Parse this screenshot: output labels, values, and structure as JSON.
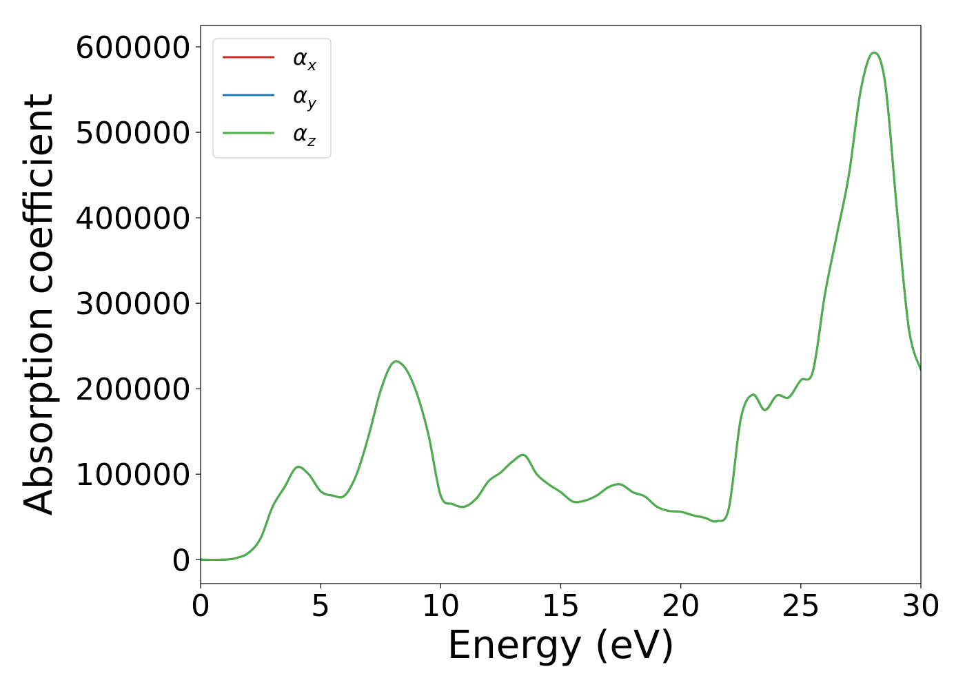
{
  "chart_data": {
    "type": "line",
    "title": "",
    "xlabel": "Energy (eV)",
    "ylabel": "Absorption coefficient",
    "xlim": [
      0,
      30
    ],
    "ylim": [
      -28000,
      625000
    ],
    "xticks": [
      0,
      5,
      10,
      15,
      20,
      25,
      30
    ],
    "xtick_labels": [
      "0",
      "5",
      "10",
      "15",
      "20",
      "25",
      "30"
    ],
    "yticks": [
      0,
      100000,
      200000,
      300000,
      400000,
      500000,
      600000
    ],
    "ytick_labels": [
      "0",
      "100000",
      "200000",
      "300000",
      "400000",
      "500000",
      "600000"
    ],
    "grid": false,
    "legend_position": "top-left",
    "series": [
      {
        "name": "α",
        "subscript": "x",
        "color": "#d62728",
        "x": [
          0,
          1,
          1.5,
          2,
          2.5,
          3,
          3.5,
          4,
          4.5,
          5,
          5.5,
          6,
          6.5,
          7,
          7.5,
          8,
          8.5,
          9,
          9.5,
          10,
          10.5,
          11,
          11.5,
          12,
          12.5,
          13,
          13.5,
          14,
          14.5,
          15,
          15.5,
          16,
          16.5,
          17,
          17.5,
          18,
          18.5,
          19,
          19.5,
          20,
          20.5,
          21,
          21.5,
          22,
          22.5,
          23,
          23.5,
          24,
          24.5,
          25,
          25.5,
          26,
          26.5,
          27,
          27.5,
          28,
          28.5,
          29,
          29.5,
          30
        ],
        "y": [
          0,
          0,
          2000,
          8000,
          25000,
          62000,
          85000,
          108000,
          100000,
          80000,
          75000,
          75000,
          100000,
          145000,
          198000,
          230000,
          225000,
          195000,
          145000,
          75000,
          65000,
          62000,
          72000,
          92000,
          102000,
          115000,
          122000,
          100000,
          88000,
          79000,
          68000,
          69000,
          75000,
          85000,
          88000,
          79000,
          74000,
          62000,
          57000,
          56000,
          52000,
          49000,
          45000,
          60000,
          165000,
          193000,
          175000,
          192000,
          190000,
          210000,
          220000,
          310000,
          380000,
          450000,
          550000,
          593000,
          560000,
          410000,
          270000,
          222000
        ]
      },
      {
        "name": "α",
        "subscript": "y",
        "color": "#1f77b4",
        "x": [
          0,
          1,
          1.5,
          2,
          2.5,
          3,
          3.5,
          4,
          4.5,
          5,
          5.5,
          6,
          6.5,
          7,
          7.5,
          8,
          8.5,
          9,
          9.5,
          10,
          10.5,
          11,
          11.5,
          12,
          12.5,
          13,
          13.5,
          14,
          14.5,
          15,
          15.5,
          16,
          16.5,
          17,
          17.5,
          18,
          18.5,
          19,
          19.5,
          20,
          20.5,
          21,
          21.5,
          22,
          22.5,
          23,
          23.5,
          24,
          24.5,
          25,
          25.5,
          26,
          26.5,
          27,
          27.5,
          28,
          28.5,
          29,
          29.5,
          30
        ],
        "y": [
          0,
          0,
          2000,
          8000,
          25000,
          62000,
          85000,
          108000,
          100000,
          80000,
          75000,
          75000,
          100000,
          145000,
          198000,
          230000,
          225000,
          195000,
          145000,
          75000,
          65000,
          62000,
          72000,
          92000,
          102000,
          115000,
          122000,
          100000,
          88000,
          79000,
          68000,
          69000,
          75000,
          85000,
          88000,
          79000,
          74000,
          62000,
          57000,
          56000,
          52000,
          49000,
          45000,
          60000,
          165000,
          193000,
          175000,
          192000,
          190000,
          210000,
          220000,
          310000,
          380000,
          450000,
          550000,
          593000,
          560000,
          410000,
          270000,
          222000
        ]
      },
      {
        "name": "α",
        "subscript": "z",
        "color": "#4daf4a",
        "x": [
          0,
          1,
          1.5,
          2,
          2.5,
          3,
          3.5,
          4,
          4.5,
          5,
          5.5,
          6,
          6.5,
          7,
          7.5,
          8,
          8.5,
          9,
          9.5,
          10,
          10.5,
          11,
          11.5,
          12,
          12.5,
          13,
          13.5,
          14,
          14.5,
          15,
          15.5,
          16,
          16.5,
          17,
          17.5,
          18,
          18.5,
          19,
          19.5,
          20,
          20.5,
          21,
          21.5,
          22,
          22.5,
          23,
          23.5,
          24,
          24.5,
          25,
          25.5,
          26,
          26.5,
          27,
          27.5,
          28,
          28.5,
          29,
          29.5,
          30
        ],
        "y": [
          0,
          0,
          2000,
          8000,
          25000,
          62000,
          85000,
          108000,
          100000,
          80000,
          75000,
          75000,
          100000,
          145000,
          198000,
          230000,
          225000,
          195000,
          145000,
          75000,
          65000,
          62000,
          72000,
          92000,
          102000,
          115000,
          122000,
          100000,
          88000,
          79000,
          68000,
          69000,
          75000,
          85000,
          88000,
          79000,
          74000,
          62000,
          57000,
          56000,
          52000,
          49000,
          45000,
          60000,
          165000,
          193000,
          175000,
          192000,
          190000,
          210000,
          220000,
          310000,
          380000,
          450000,
          550000,
          593000,
          560000,
          410000,
          270000,
          222000
        ]
      }
    ]
  }
}
